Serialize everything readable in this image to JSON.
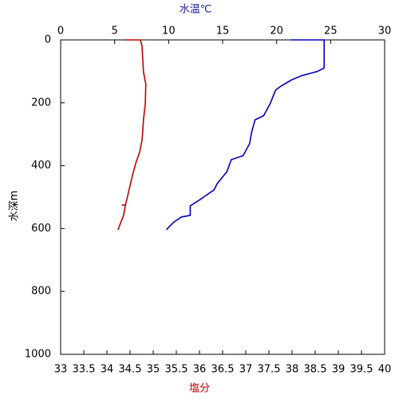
{
  "chart_data": {
    "type": "line",
    "x2label": "水温℃",
    "xlabel": "塩分",
    "ylabel": "水深m",
    "ylim": [
      0,
      1000
    ],
    "yticks": [
      0,
      200,
      400,
      600,
      800,
      1000
    ],
    "y_inverted": true,
    "x2lim": [
      0,
      30
    ],
    "x2ticks": [
      0,
      5,
      10,
      15,
      20,
      25,
      30
    ],
    "xlim": [
      33,
      40
    ],
    "xticks": [
      33,
      33.5,
      34,
      34.5,
      35,
      35.5,
      36,
      36.5,
      37,
      37.5,
      38,
      38.5,
      39,
      39.5,
      40
    ],
    "x2label_color": "#1a1aa6",
    "xlabel_color": "#c00000",
    "series": [
      {
        "name": "水温",
        "color": "#0000c0",
        "axis": "x2",
        "depth": [
          0,
          0,
          89,
          100,
          114,
          127,
          147,
          160,
          203,
          241,
          254,
          292,
          330,
          368,
          381,
          419,
          457,
          477,
          508,
          528,
          558,
          563,
          579,
          596,
          604
        ],
        "values": [
          21.3,
          24.4,
          24.4,
          23.8,
          22.3,
          21.4,
          20.4,
          19.9,
          19.4,
          18.8,
          18.0,
          17.7,
          17.5,
          16.9,
          15.8,
          15.4,
          14.5,
          14.2,
          12.9,
          12.0,
          12.0,
          11.2,
          10.5,
          10.0,
          9.8
        ]
      },
      {
        "name": "塩分",
        "color": "#c00000",
        "axis": "x",
        "depth": [
          0,
          0,
          20,
          25,
          102,
          140,
          203,
          254,
          317,
          355,
          393,
          444,
          495,
          525,
          525,
          525,
          558,
          584,
          604
        ],
        "values": [
          34.41,
          34.72,
          34.76,
          34.76,
          34.79,
          34.84,
          34.83,
          34.79,
          34.76,
          34.71,
          34.62,
          34.53,
          34.45,
          34.4,
          34.32,
          34.4,
          34.36,
          34.29,
          34.24
        ]
      }
    ]
  }
}
